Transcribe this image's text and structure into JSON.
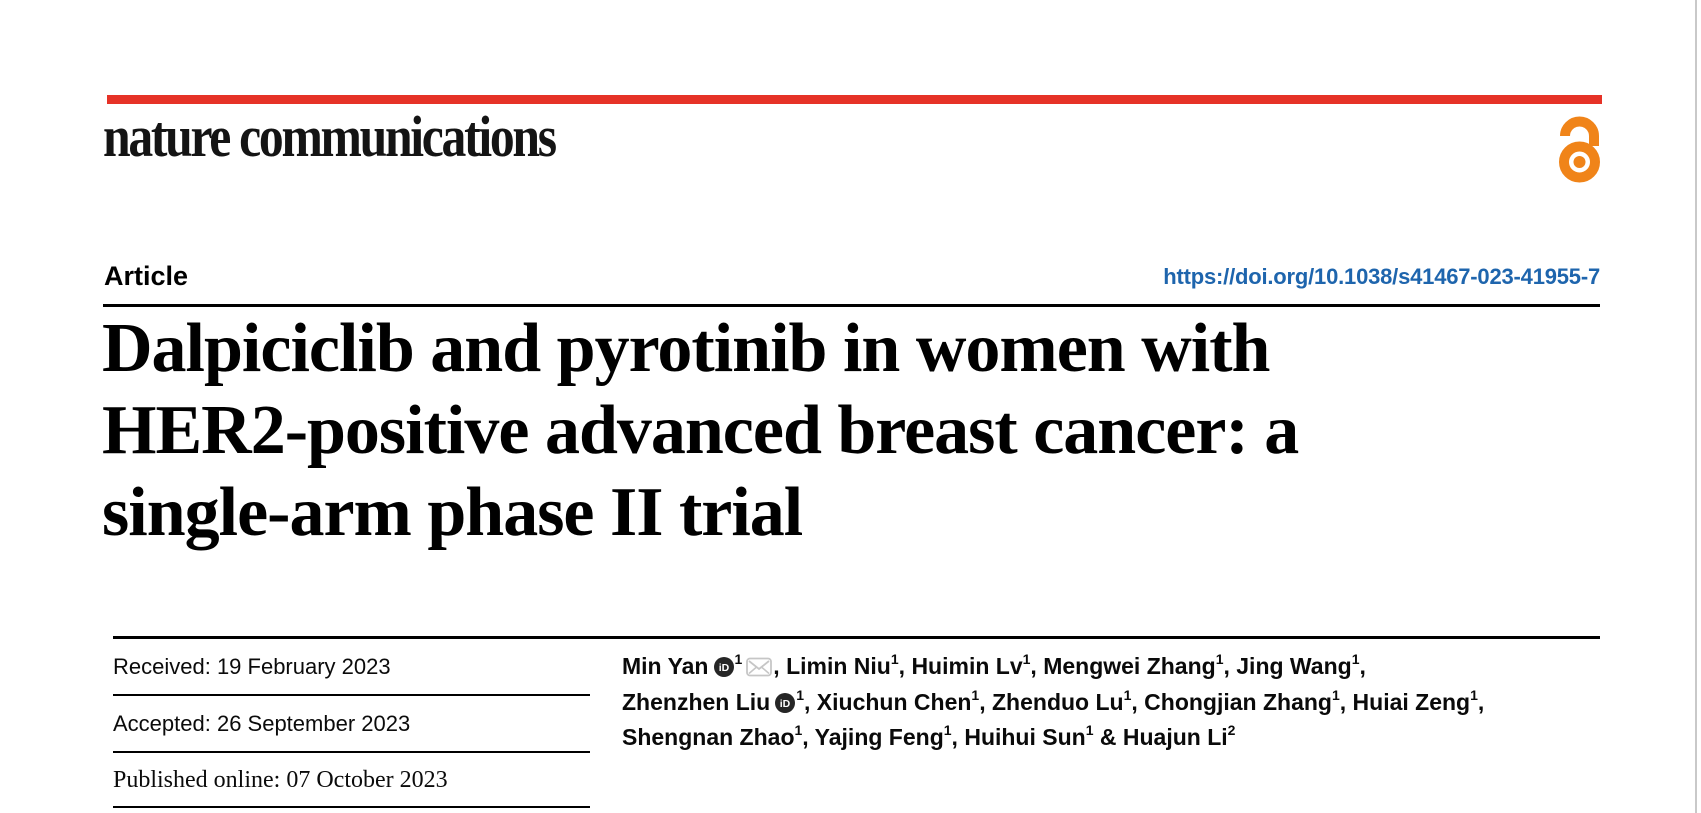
{
  "page": {
    "background": "#ffffff",
    "edge_line_color": "#c9c9c9"
  },
  "header": {
    "journal_name": "nature communications",
    "accent_bar_color": "#e63227",
    "open_access_icon": "open-access-lock-icon",
    "open_access_color": "#f08419"
  },
  "article_bar": {
    "label": "Article",
    "doi": "https://doi.org/10.1038/s41467-023-41955-7",
    "doi_color": "#1e65ad"
  },
  "title": {
    "lines": [
      "Dalpiciclib and pyrotinib in women with",
      "HER2-positive advanced breast cancer: a",
      "single-arm phase II trial"
    ]
  },
  "dates": {
    "received": "Received: 19 February 2023",
    "accepted": "Accepted: 26 September 2023",
    "published": "Published online: 07 October 2023"
  },
  "authors": {
    "lines": [
      [
        {
          "t": "name",
          "v": "Min Yan"
        },
        {
          "t": "icon",
          "v": "orcid-icon"
        },
        {
          "t": "sup",
          "v": "1"
        },
        {
          "t": "icon",
          "v": "envelope-icon"
        },
        {
          "t": "text",
          "v": ", "
        },
        {
          "t": "name",
          "v": "Limin Niu"
        },
        {
          "t": "sup",
          "v": "1"
        },
        {
          "t": "text",
          "v": ", "
        },
        {
          "t": "name",
          "v": "Huimin Lv"
        },
        {
          "t": "sup",
          "v": "1"
        },
        {
          "t": "text",
          "v": ", "
        },
        {
          "t": "name",
          "v": "Mengwei Zhang"
        },
        {
          "t": "sup",
          "v": "1"
        },
        {
          "t": "text",
          "v": ", "
        },
        {
          "t": "name",
          "v": "Jing Wang"
        },
        {
          "t": "sup",
          "v": "1"
        },
        {
          "t": "text",
          "v": ","
        }
      ],
      [
        {
          "t": "name",
          "v": "Zhenzhen Liu"
        },
        {
          "t": "icon",
          "v": "orcid-icon"
        },
        {
          "t": "sup",
          "v": "1"
        },
        {
          "t": "text",
          "v": ", "
        },
        {
          "t": "name",
          "v": "Xiuchun Chen"
        },
        {
          "t": "sup",
          "v": "1"
        },
        {
          "t": "text",
          "v": ", "
        },
        {
          "t": "name",
          "v": "Zhenduo Lu"
        },
        {
          "t": "sup",
          "v": "1"
        },
        {
          "t": "text",
          "v": ", "
        },
        {
          "t": "name",
          "v": "Chongjian Zhang"
        },
        {
          "t": "sup",
          "v": "1"
        },
        {
          "t": "text",
          "v": ", "
        },
        {
          "t": "name",
          "v": "Huiai Zeng"
        },
        {
          "t": "sup",
          "v": "1"
        },
        {
          "t": "text",
          "v": ","
        }
      ],
      [
        {
          "t": "name",
          "v": "Shengnan Zhao"
        },
        {
          "t": "sup",
          "v": "1"
        },
        {
          "t": "text",
          "v": ", "
        },
        {
          "t": "name",
          "v": "Yajing Feng"
        },
        {
          "t": "sup",
          "v": "1"
        },
        {
          "t": "text",
          "v": ", "
        },
        {
          "t": "name",
          "v": "Huihui Sun"
        },
        {
          "t": "sup",
          "v": "1"
        },
        {
          "t": "text",
          "v": " & "
        },
        {
          "t": "name",
          "v": "Huajun Li"
        },
        {
          "t": "sup",
          "v": "2"
        }
      ]
    ]
  }
}
